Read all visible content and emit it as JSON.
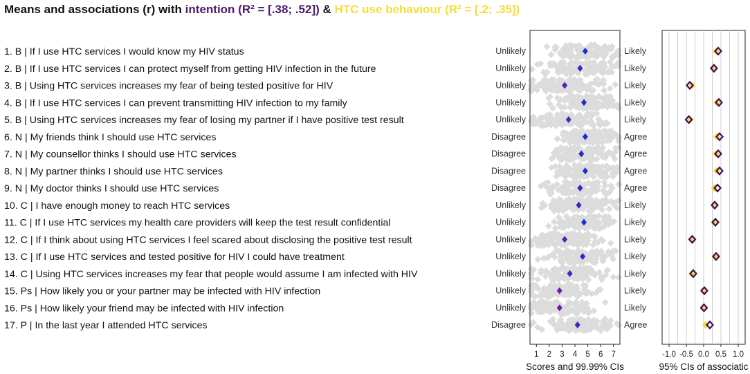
{
  "title": {
    "prefix": "Means and associations (r) with ",
    "intention": "intention",
    "intention_r2": " (R² = [.38; .52])",
    "amp": " & ",
    "behaviour": "HTC use behaviour",
    "behaviour_r2": " (R² = [.2; .35])"
  },
  "colors": {
    "intention": "#3d0d5e",
    "behaviour": "#f4dd3c",
    "mean_low": "#6a1ba8",
    "mean_high": "#1f2bd6",
    "points": "#555555",
    "panel_border": "#222222",
    "grid": "#cccccc"
  },
  "chart_data": [
    {
      "type": "scatter",
      "description_panel": "scores",
      "xlabel": "Scores and 99.99% CIs",
      "xlim": [
        0.5,
        7.5
      ],
      "xticks": [
        "1",
        "2",
        "3",
        "4",
        "5",
        "6",
        "7"
      ],
      "items": [
        {
          "label": "1. B | If I use HTC services I would know my HIV status",
          "low": "Unlikely",
          "high": "Likely",
          "mean": 4.8,
          "spread": 2.6
        },
        {
          "label": "2. B | If I use HTC services I can protect myself from getting HIV infection in the future",
          "low": "Unlikely",
          "high": "Likely",
          "mean": 4.4,
          "spread": 2.8
        },
        {
          "label": "3. B | Using HTC services increases my fear of being tested positive for HIV",
          "low": "Unlikely",
          "high": "Likely",
          "mean": 3.2,
          "spread": 3.0
        },
        {
          "label": "4. B | If I use HTC services I can prevent transmitting HIV infection to my family",
          "low": "Unlikely",
          "high": "Likely",
          "mean": 4.7,
          "spread": 2.6
        },
        {
          "label": "5. B | Using HTC services increases my fear of losing my partner if I have positive test result",
          "low": "Unlikely",
          "high": "Likely",
          "mean": 3.5,
          "spread": 3.0
        },
        {
          "label": "6. N | My friends think I should use HTC services",
          "low": "Disagree",
          "high": "Agree",
          "mean": 4.8,
          "spread": 2.4
        },
        {
          "label": "7. N | My counsellor thinks I should use HTC services",
          "low": "Disagree",
          "high": "Agree",
          "mean": 4.5,
          "spread": 2.5
        },
        {
          "label": "8. N | My partner thinks I should use HTC services",
          "low": "Disagree",
          "high": "Agree",
          "mean": 4.8,
          "spread": 2.4
        },
        {
          "label": "9. N | My doctor thinks I should use HTC services",
          "low": "Disagree",
          "high": "Agree",
          "mean": 4.4,
          "spread": 2.5
        },
        {
          "label": "10. C | I have enough money to reach HTC services",
          "low": "Unlikely",
          "high": "Likely",
          "mean": 4.3,
          "spread": 2.8
        },
        {
          "label": "11. C | If I use HTC services my health care providers will keep the test result confidential",
          "low": "Unlikely",
          "high": "Likely",
          "mean": 4.7,
          "spread": 2.6
        },
        {
          "label": "12. C | If I think about using HTC services I feel scared about disclosing the positive test result",
          "low": "Unlikely",
          "high": "Likely",
          "mean": 3.2,
          "spread": 3.0
        },
        {
          "label": "13. C | If I use HTC services and tested positive for HIV I could have treatment",
          "low": "Unlikely",
          "high": "Likely",
          "mean": 4.6,
          "spread": 2.6
        },
        {
          "label": "14. C | Using HTC services increases my fear that people would assume I am infected with HIV",
          "low": "Unlikely",
          "high": "Likely",
          "mean": 3.6,
          "spread": 3.0
        },
        {
          "label": "15. Ps | How likely you or your partner may be infected with HIV infection",
          "low": "Unlikely",
          "high": "Likely",
          "mean": 2.8,
          "spread": 2.8
        },
        {
          "label": "16. Ps | How likely your friend may be infected with HIV infection",
          "low": "Unlikely",
          "high": "Likely",
          "mean": 2.8,
          "spread": 2.8
        },
        {
          "label": "17. P | In the last year I attended HTC services",
          "low": "Disagree",
          "high": "Agree",
          "mean": 4.2,
          "spread": 2.8
        }
      ]
    },
    {
      "type": "scatter",
      "description_panel": "associations",
      "xlabel": "95% CIs of associatic",
      "xlim": [
        -1.2,
        1.2
      ],
      "xticks": [
        "-1.0",
        "-0.5",
        "0.0",
        "0.5",
        "1.0"
      ],
      "xtick_values": [
        -1.0,
        -0.5,
        0.0,
        0.5,
        1.0
      ],
      "intention_r": [
        0.42,
        0.3,
        -0.4,
        0.44,
        -0.43,
        0.46,
        0.42,
        0.46,
        0.4,
        0.32,
        0.34,
        -0.33,
        0.36,
        -0.3,
        0.02,
        0.01,
        0.18
      ],
      "behaviour_r": [
        0.36,
        0.27,
        -0.33,
        0.38,
        -0.38,
        0.38,
        0.36,
        0.38,
        0.31,
        0.33,
        0.31,
        -0.35,
        0.32,
        -0.34,
        -0.01,
        -0.02,
        0.06
      ]
    }
  ]
}
